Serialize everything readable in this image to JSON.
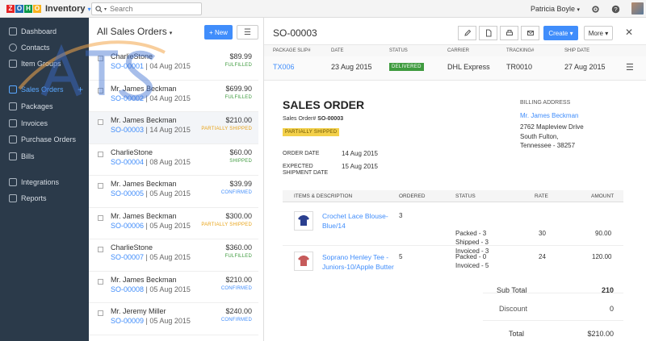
{
  "app": {
    "logo_letters": [
      "Z",
      "O",
      "H",
      "O"
    ],
    "logo_colors": [
      "#e42527",
      "#226db4",
      "#089949",
      "#f9b21d"
    ],
    "name": "Inventory"
  },
  "search": {
    "placeholder": "Search"
  },
  "user": {
    "name": "Patricia Boyle"
  },
  "sidebar": {
    "items": [
      {
        "label": "Dashboard",
        "icon": "dashboard-icon"
      },
      {
        "label": "Contacts",
        "icon": "contacts-icon"
      },
      {
        "label": "Item Groups",
        "icon": "item-groups-icon"
      },
      {
        "label": "Sales Orders",
        "icon": "sales-orders-icon",
        "active": true
      },
      {
        "label": "Packages",
        "icon": "packages-icon"
      },
      {
        "label": "Invoices",
        "icon": "invoices-icon"
      },
      {
        "label": "Purchase Orders",
        "icon": "purchase-orders-icon"
      },
      {
        "label": "Bills",
        "icon": "bills-icon"
      },
      {
        "label": "Integrations",
        "icon": "integrations-icon"
      },
      {
        "label": "Reports",
        "icon": "reports-icon"
      }
    ],
    "add_label": "+"
  },
  "list": {
    "title": "All Sales Orders",
    "new_label": "+ New",
    "rows": [
      {
        "customer": "CharlieStone",
        "so": "SO-00001",
        "date": "04 Aug 2015",
        "amount": "$89.99",
        "status": "FULFILLED"
      },
      {
        "customer": "Mr. James Beckman",
        "so": "SO-00002",
        "date": "04 Aug 2015",
        "amount": "$699.90",
        "status": "FULFILLED"
      },
      {
        "customer": "Mr. James Beckman",
        "so": "SO-00003",
        "date": "14 Aug 2015",
        "amount": "$210.00",
        "status": "PARTIALLY SHIPPED"
      },
      {
        "customer": "CharlieStone",
        "so": "SO-00004",
        "date": "08 Aug 2015",
        "amount": "$60.00",
        "status": "SHIPPED"
      },
      {
        "customer": "Mr. James Beckman",
        "so": "SO-00005",
        "date": "05 Aug 2015",
        "amount": "$39.99",
        "status": "CONFIRMED"
      },
      {
        "customer": "Mr. James Beckman",
        "so": "SO-00006",
        "date": "05 Aug 2015",
        "amount": "$300.00",
        "status": "PARTIALLY SHIPPED"
      },
      {
        "customer": "CharlieStone",
        "so": "SO-00007",
        "date": "05 Aug 2015",
        "amount": "$360.00",
        "status": "FULFILLED"
      },
      {
        "customer": "Mr. James Beckman",
        "so": "SO-00008",
        "date": "05 Aug 2015",
        "amount": "$210.00",
        "status": "CONFIRMED"
      },
      {
        "customer": "Mr. Jeremy Miller",
        "so": "SO-00009",
        "date": "05 Aug 2015",
        "amount": "$240.00",
        "status": "CONFIRMED"
      }
    ]
  },
  "status_colors": {
    "FULFILLED": "#3f9b3f",
    "PARTIALLY SHIPPED": "#e8a317",
    "SHIPPED": "#3f9b3f",
    "CONFIRMED": "#408dfb"
  },
  "detail": {
    "title": "SO-00003",
    "create_label": "Create",
    "more_label": "More",
    "package_headers": [
      "PACKAGE SLIP#",
      "DATE",
      "STATUS",
      "CARRIER",
      "TRACKING#",
      "SHIP DATE"
    ],
    "package": {
      "slip": "TX006",
      "date": "23 Aug 2015",
      "status": "DELIVERED",
      "carrier": "DHL Express",
      "tracking": "TR0010",
      "ship_date": "27 Aug 2015"
    },
    "heading": "SALES ORDER",
    "so_label": "Sales Order#",
    "so_number": "SO-00003",
    "order_status": "PARTIALLY SHIPPED",
    "billing_heading": "BILLING ADDRESS",
    "billing_name": "Mr. James Beckman",
    "billing_lines": [
      "2762 Mapleview Drive",
      "South Fulton,",
      "Tennessee - 38257"
    ],
    "order_date_label": "ORDER DATE",
    "order_date": "14 Aug 2015",
    "expected_label_1": "EXPECTED",
    "expected_label_2": "SHIPMENT DATE",
    "expected_date": "15 Aug 2015",
    "item_headers": {
      "item": "ITEMS & DESCRIPTION",
      "ordered": "ORDERED",
      "status": "STATUS",
      "rate": "RATE",
      "amount": "AMOUNT"
    },
    "items": [
      {
        "name1": "Crochet Lace Blouse-",
        "name2": "Blue/14",
        "ordered": "3",
        "st1": "Packed - 3",
        "st2": "Shipped - 3",
        "st3": "Invoiced - 3",
        "rate": "30",
        "amount": "90.00"
      },
      {
        "name1": "Soprano Henley Tee -",
        "name2": "Juniors-10/Apple Butter",
        "ordered": "5",
        "st1": "Packed - 0",
        "st2": "Invoiced - 5",
        "rate": "24",
        "amount": "120.00"
      }
    ],
    "subtotal_label": "Sub Total",
    "subtotal": "210",
    "discount_label": "Discount",
    "discount": "0",
    "total_label": "Total",
    "total": "$210.00"
  }
}
